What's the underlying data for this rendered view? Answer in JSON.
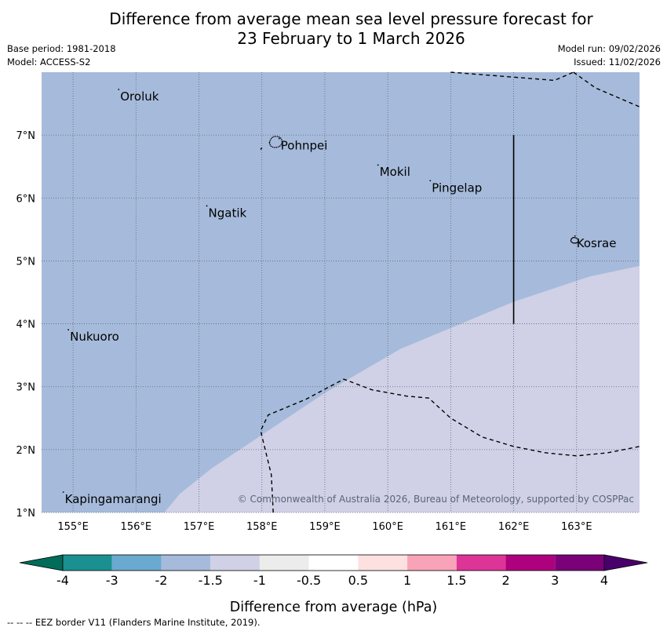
{
  "title_line1": "Difference from average mean sea level pressure forecast for",
  "title_line2": "23 February to 1 March 2026",
  "base_period": "Base period: 1981-2018",
  "model": "Model: ACCESS-S2",
  "model_run": "Model run: 09/02/2026",
  "issued": "Issued: 11/02/2026",
  "attribution": "© Commonwealth of Australia 2026, Bureau of Meteorology, supported by COSPPac",
  "colorbar_label": "Difference from average (hPa)",
  "eez_note": "--  --  -- EEZ border V11 (Flanders Marine Institute, 2019).",
  "map_extent": {
    "lon_min": 154.5,
    "lon_max": 164.0,
    "lat_min": 1.0,
    "lat_max": 8.0
  },
  "lon_ticks": [
    {
      "value": 155,
      "label": "155°E"
    },
    {
      "value": 156,
      "label": "156°E"
    },
    {
      "value": 157,
      "label": "157°E"
    },
    {
      "value": 158,
      "label": "158°E"
    },
    {
      "value": 159,
      "label": "159°E"
    },
    {
      "value": 160,
      "label": "160°E"
    },
    {
      "value": 161,
      "label": "161°E"
    },
    {
      "value": 162,
      "label": "162°E"
    },
    {
      "value": 163,
      "label": "163°E"
    }
  ],
  "lat_ticks": [
    {
      "value": 7,
      "label": "7°N"
    },
    {
      "value": 6,
      "label": "6°N"
    },
    {
      "value": 5,
      "label": "5°N"
    },
    {
      "value": 4,
      "label": "4°N"
    },
    {
      "value": 3,
      "label": "3°N"
    },
    {
      "value": 2,
      "label": "2°N"
    },
    {
      "value": 1,
      "label": "1°N"
    }
  ],
  "places": [
    {
      "name": "Oroluk",
      "lon": 155.75,
      "lat": 7.65
    },
    {
      "name": "Pohnpei",
      "lon": 158.3,
      "lat": 6.87
    },
    {
      "name": "Mokil",
      "lon": 159.87,
      "lat": 6.45
    },
    {
      "name": "Pingelap",
      "lon": 160.7,
      "lat": 6.2
    },
    {
      "name": "Ngatik",
      "lon": 157.15,
      "lat": 5.8
    },
    {
      "name": "Kosrae",
      "lon": 163.0,
      "lat": 5.32
    },
    {
      "name": "Nukuoro",
      "lon": 154.95,
      "lat": 3.83
    },
    {
      "name": "Kapingamarangi",
      "lon": 154.87,
      "lat": 1.25
    }
  ],
  "anomaly_regions": [
    {
      "range": "-2 to -1.5",
      "color": "#a6bbdb"
    },
    {
      "range": "-1.5 to -1",
      "color": "#d0d1e6"
    }
  ],
  "contour_boundary": [
    [
      156.45,
      1.0
    ],
    [
      156.7,
      1.3
    ],
    [
      157.2,
      1.7
    ],
    [
      157.8,
      2.1
    ],
    [
      158.4,
      2.5
    ],
    [
      159.0,
      2.9
    ],
    [
      159.6,
      3.25
    ],
    [
      160.2,
      3.6
    ],
    [
      160.8,
      3.85
    ],
    [
      161.4,
      4.1
    ],
    [
      162.0,
      4.35
    ],
    [
      162.6,
      4.55
    ],
    [
      163.2,
      4.75
    ],
    [
      164.0,
      4.92
    ]
  ],
  "eez_borders": [
    [
      [
        161.0,
        8.0
      ],
      [
        162.65,
        7.87
      ],
      [
        162.95,
        8.0
      ]
    ],
    [
      [
        162.95,
        8.0
      ],
      [
        163.3,
        7.75
      ],
      [
        164.0,
        7.45
      ]
    ],
    [
      [
        157.98,
        6.77
      ],
      [
        158.0,
        6.8
      ]
    ],
    [
      [
        158.18,
        1.0
      ],
      [
        158.15,
        1.6
      ],
      [
        157.98,
        2.3
      ],
      [
        158.1,
        2.55
      ],
      [
        158.7,
        2.8
      ],
      [
        159.3,
        3.12
      ],
      [
        159.75,
        2.95
      ],
      [
        160.3,
        2.85
      ],
      [
        160.65,
        2.82
      ],
      [
        161.0,
        2.5
      ],
      [
        161.5,
        2.2
      ],
      [
        162.0,
        2.05
      ],
      [
        162.5,
        1.95
      ],
      [
        163.0,
        1.9
      ],
      [
        163.5,
        1.95
      ],
      [
        164.0,
        2.05
      ]
    ]
  ],
  "eez_meridian": {
    "lon": 162.0,
    "lat_from": 4.0,
    "lat_to": 7.0
  },
  "colorbar": {
    "colors": [
      "#1a9090",
      "#6aa9d0",
      "#a6bbdb",
      "#d0d1e6",
      "#ececec",
      "#ffffff",
      "#fde0e0",
      "#f8a3b8",
      "#dd3497",
      "#ae017e",
      "#7a0177"
    ],
    "under_color": "#016c59",
    "over_color": "#49006a",
    "tick_labels": [
      "-4",
      "-3",
      "-2",
      "-1.5",
      "-1",
      "-0.5",
      "0.5",
      "1",
      "1.5",
      "2",
      "3",
      "4"
    ]
  }
}
